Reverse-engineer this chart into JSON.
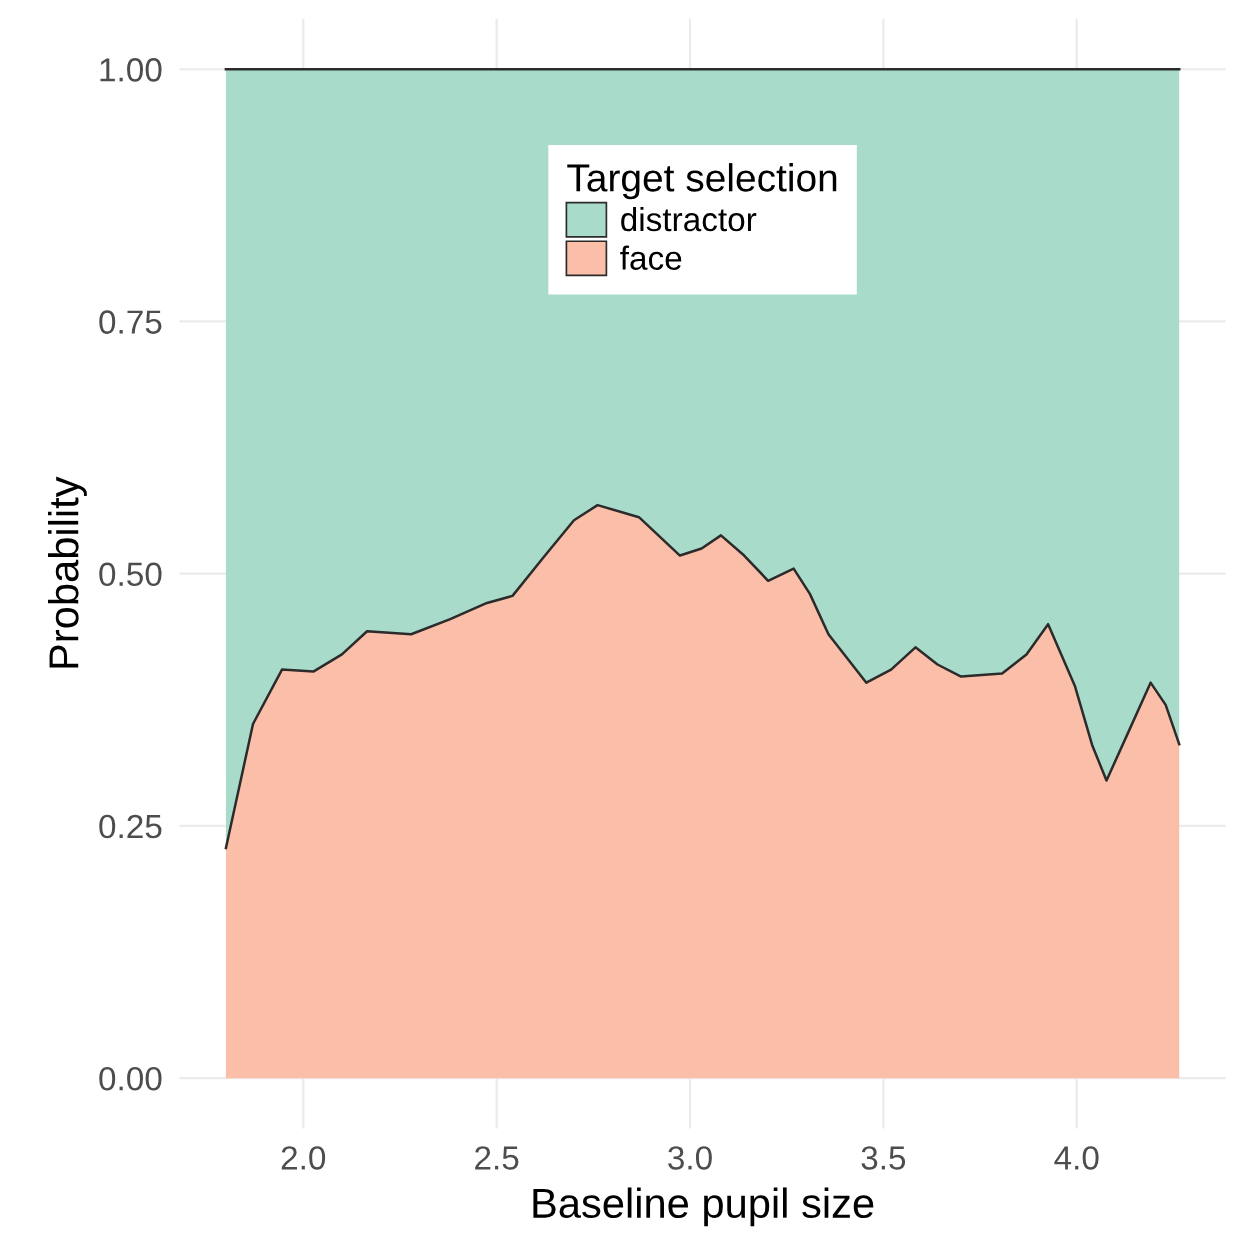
{
  "chart_data": {
    "type": "area",
    "stacked": true,
    "xlabel": "Baseline pupil size",
    "ylabel": "Probability",
    "legend_title": "Target selection",
    "legend": "top",
    "x": [
      1.8,
      1.87,
      1.945,
      2.026,
      2.1,
      2.165,
      2.279,
      2.38,
      2.475,
      2.541,
      2.623,
      2.7,
      2.761,
      2.868,
      2.974,
      3.03,
      3.08,
      3.14,
      3.202,
      3.268,
      3.31,
      3.358,
      3.456,
      3.52,
      3.583,
      3.64,
      3.701,
      3.807,
      3.87,
      3.926,
      3.995,
      4.04,
      4.077,
      4.13,
      4.191,
      4.23,
      4.265
    ],
    "series": [
      {
        "name": "face",
        "color": "#fbbea8",
        "values": [
          0.228,
          0.351,
          0.405,
          0.403,
          0.42,
          0.443,
          0.44,
          0.455,
          0.471,
          0.478,
          0.517,
          0.553,
          0.568,
          0.556,
          0.518,
          0.525,
          0.538,
          0.518,
          0.493,
          0.505,
          0.48,
          0.44,
          0.392,
          0.405,
          0.427,
          0.41,
          0.398,
          0.401,
          0.42,
          0.45,
          0.389,
          0.33,
          0.295,
          0.34,
          0.392,
          0.37,
          0.331
        ]
      },
      {
        "name": "distractor",
        "color": "#a9dbcb",
        "values": [
          0.772,
          0.649,
          0.595,
          0.597,
          0.58,
          0.557,
          0.56,
          0.545,
          0.529,
          0.522,
          0.483,
          0.447,
          0.432,
          0.444,
          0.482,
          0.475,
          0.462,
          0.482,
          0.507,
          0.495,
          0.52,
          0.56,
          0.608,
          0.595,
          0.573,
          0.59,
          0.602,
          0.599,
          0.58,
          0.55,
          0.611,
          0.67,
          0.705,
          0.66,
          0.608,
          0.63,
          0.669
        ]
      }
    ],
    "xlim": [
      1.68,
      4.385
    ],
    "xticks": [
      {
        "value": 2.0,
        "label": "2.0"
      },
      {
        "value": 2.5,
        "label": "2.5"
      },
      {
        "value": 3.0,
        "label": "3.0"
      },
      {
        "value": 3.5,
        "label": "3.5"
      },
      {
        "value": 4.0,
        "label": "4.0"
      }
    ],
    "ylim": [
      -0.05,
      1.05
    ],
    "yticks": [
      {
        "value": 0,
        "label": "0.00"
      },
      {
        "value": 0.25,
        "label": "0.25"
      },
      {
        "value": 0.5,
        "label": "0.50"
      },
      {
        "value": 0.75,
        "label": "0.75"
      },
      {
        "value": 1.0,
        "label": "1.00"
      }
    ],
    "grid": true
  }
}
